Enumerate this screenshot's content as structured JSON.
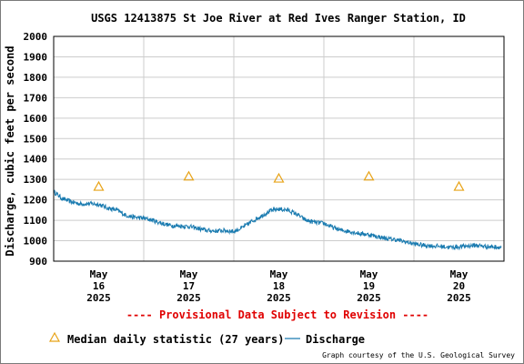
{
  "chart_data": {
    "type": "line",
    "title": "USGS 12413875 St Joe River at Red Ives Ranger Station, ID",
    "ylabel": "Discharge, cubic feet per second",
    "xlabel": "",
    "ylim": [
      900,
      2000
    ],
    "yticks": [
      900,
      1000,
      1100,
      1200,
      1300,
      1400,
      1500,
      1600,
      1700,
      1800,
      1900,
      2000
    ],
    "xlim": [
      0,
      5
    ],
    "xticks": [
      {
        "x": 0.5,
        "month": "May",
        "day": "16",
        "year": "2025"
      },
      {
        "x": 1.5,
        "month": "May",
        "day": "17",
        "year": "2025"
      },
      {
        "x": 2.5,
        "month": "May",
        "day": "18",
        "year": "2025"
      },
      {
        "x": 3.5,
        "month": "May",
        "day": "19",
        "year": "2025"
      },
      {
        "x": 4.5,
        "month": "May",
        "day": "20",
        "year": "2025"
      }
    ],
    "grid": true,
    "series": [
      {
        "name": "Discharge",
        "color": "#1a7bb0",
        "x": [
          0.0,
          0.1,
          0.2,
          0.3,
          0.4,
          0.5,
          0.6,
          0.7,
          0.8,
          0.9,
          1.0,
          1.1,
          1.2,
          1.3,
          1.4,
          1.5,
          1.6,
          1.7,
          1.8,
          1.9,
          2.0,
          2.1,
          2.2,
          2.3,
          2.4,
          2.5,
          2.6,
          2.7,
          2.8,
          2.9,
          3.0,
          3.1,
          3.2,
          3.3,
          3.4,
          3.5,
          3.6,
          3.7,
          3.8,
          3.9,
          4.0,
          4.1,
          4.2,
          4.3,
          4.4,
          4.5,
          4.6,
          4.7,
          4.8,
          4.9,
          4.97
        ],
        "values": [
          1240,
          1205,
          1190,
          1180,
          1182,
          1178,
          1160,
          1150,
          1125,
          1115,
          1110,
          1100,
          1085,
          1075,
          1072,
          1070,
          1060,
          1050,
          1048,
          1050,
          1045,
          1065,
          1095,
          1120,
          1145,
          1155,
          1150,
          1130,
          1100,
          1090,
          1085,
          1065,
          1050,
          1045,
          1035,
          1030,
          1020,
          1010,
          1005,
          995,
          985,
          978,
          975,
          972,
          968,
          970,
          975,
          978,
          972,
          970,
          968
        ]
      }
    ],
    "median": {
      "name": "Median daily statistic (27 years)",
      "color": "#e8a317",
      "x": [
        0.5,
        1.5,
        2.5,
        3.5,
        4.5
      ],
      "values": [
        1265,
        1315,
        1305,
        1315,
        1265
      ]
    },
    "annotation": "---- Provisional Data Subject to Revision ----",
    "credit": "Graph courtesy of the U.S. Geological Survey",
    "legend_placement": "bottom"
  }
}
